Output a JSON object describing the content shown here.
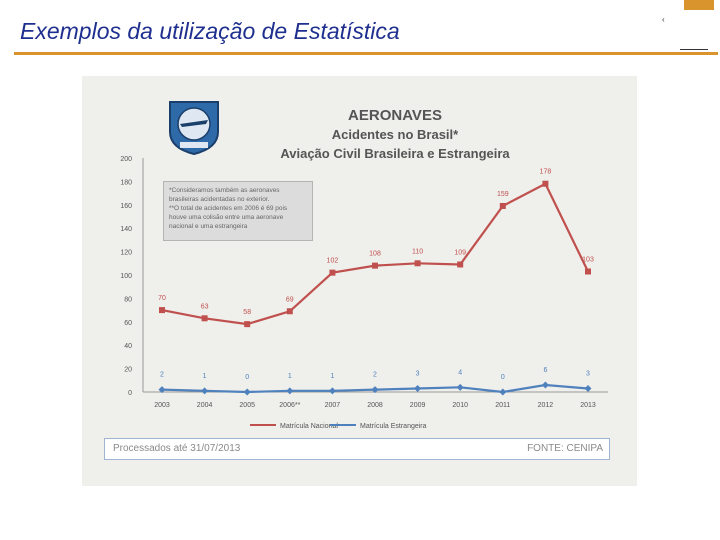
{
  "slide": {
    "title": "Exemplos da utilização de Estatística",
    "corner_mark": "‹"
  },
  "chart_heading": {
    "line1": "AERONAVES",
    "line2": "Acidentes no Brasil*",
    "line3": "Aviação Civil Brasileira e Estrangeira"
  },
  "note": {
    "line1": "*Consideramos também as aeronaves",
    "line2": "brasileiras acidentadas no exterior.",
    "line3": "**O total de acidentes em 2006 é 69 pois",
    "line4": "houve uma colisão entre uma aeronave",
    "line5": "nacional e uma estrangeira"
  },
  "footer": {
    "left": "Processados até 31/07/2013",
    "right": "FONTE: CENIPA"
  },
  "colors": {
    "title": "#1f2f8f",
    "rule": "#d9942e",
    "series_nacional": "#c0504d",
    "series_estrangeira": "#4f81bd"
  },
  "chart_data": {
    "type": "line",
    "categories": [
      "2003",
      "2004",
      "2005",
      "2006**",
      "2007",
      "2008",
      "2009",
      "2010",
      "2011",
      "2012",
      "2013"
    ],
    "series": [
      {
        "name": "Matrícula Nacional",
        "values": [
          70,
          63,
          58,
          69,
          102,
          108,
          110,
          109,
          159,
          178,
          103
        ],
        "color": "#c0504d"
      },
      {
        "name": "Matrícula Estrangeira",
        "values": [
          2,
          1,
          0,
          1,
          1,
          2,
          3,
          4,
          0,
          6,
          3
        ],
        "color": "#4f81bd"
      }
    ],
    "y_ticks": [
      0,
      20,
      40,
      60,
      80,
      100,
      120,
      140,
      160,
      180,
      200
    ],
    "ylim": [
      0,
      200
    ],
    "grid": false,
    "legend": "bottom"
  }
}
